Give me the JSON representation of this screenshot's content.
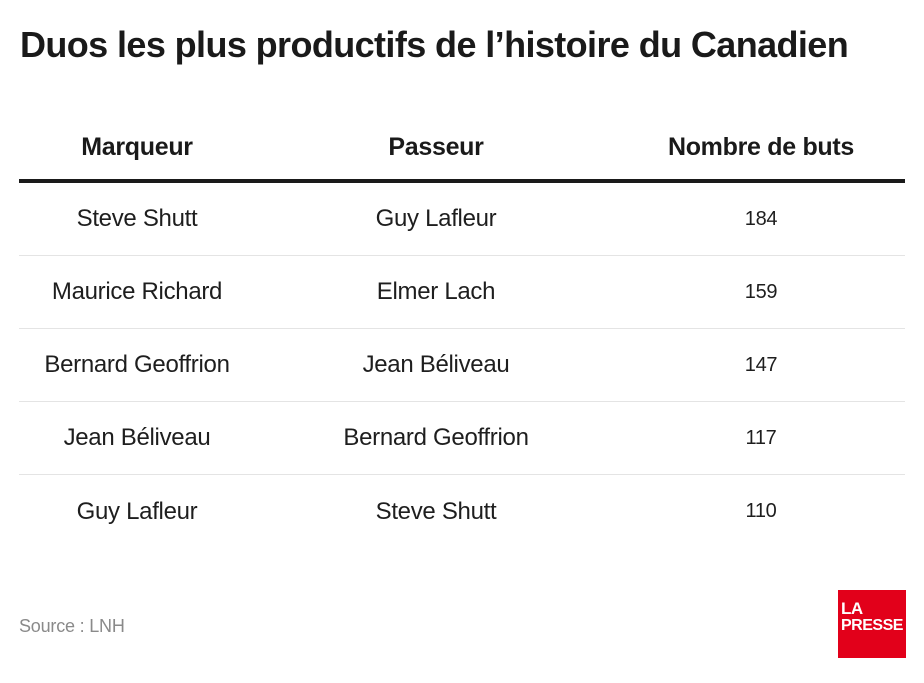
{
  "title": "Duos les plus productifs de l’histoire du Canadien",
  "source": "Source : LNH",
  "logo": {
    "line1": "LA",
    "line2": "PRESSE",
    "color": "#e2001a"
  },
  "chart_data": {
    "type": "table",
    "title": "Duos les plus productifs de l’histoire du Canadien",
    "columns": [
      "Marqueur",
      "Passeur",
      "Nombre de buts"
    ],
    "rows": [
      [
        "Steve Shutt",
        "Guy Lafleur",
        184
      ],
      [
        "Maurice Richard",
        "Elmer Lach",
        159
      ],
      [
        "Bernard Geoffrion",
        "Jean Béliveau",
        147
      ],
      [
        "Jean Béliveau",
        "Bernard Geoffrion",
        117
      ],
      [
        "Guy Lafleur",
        "Steve Shutt",
        110
      ]
    ]
  }
}
